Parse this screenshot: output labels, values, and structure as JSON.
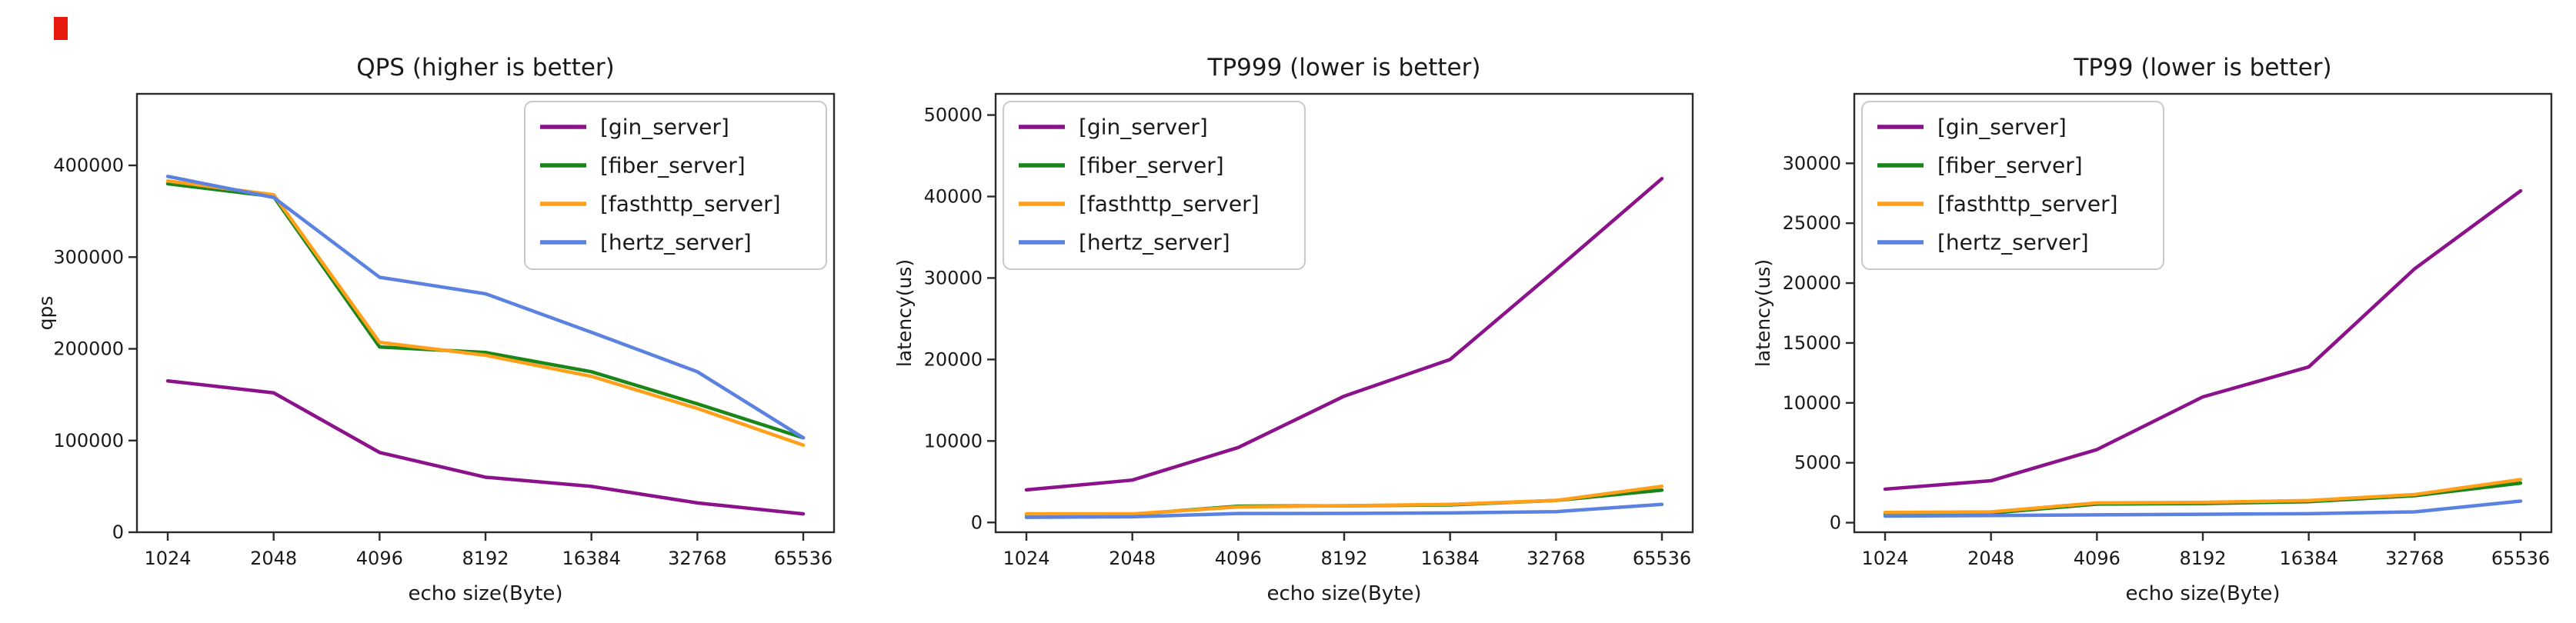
{
  "red_marker": {
    "color": "#e8190f"
  },
  "x_axis": {
    "label": "echo size(Byte)",
    "categories": [
      "1024",
      "2048",
      "4096",
      "8192",
      "16384",
      "32768",
      "65536"
    ]
  },
  "chart_data": [
    {
      "type": "line",
      "title": "QPS (higher is better)",
      "xlabel": "echo size(Byte)",
      "ylabel": "qps",
      "categories": [
        "1024",
        "2048",
        "4096",
        "8192",
        "16384",
        "32768",
        "65536"
      ],
      "x_scale": "log2-evenly-spaced",
      "ylim": [
        0,
        478000
      ],
      "yticks": [
        0,
        100000,
        200000,
        300000,
        400000
      ],
      "grid": false,
      "legend_position": "upper right",
      "series": [
        {
          "label": "[gin_server]",
          "color": "#8b128b",
          "values": [
            165000,
            152000,
            87000,
            60000,
            50000,
            32000,
            20000
          ]
        },
        {
          "label": "[fiber_server]",
          "color": "#1a861a",
          "values": [
            380000,
            366000,
            202000,
            196000,
            175000,
            140000,
            103000
          ]
        },
        {
          "label": "[fasthttp_server]",
          "color": "#ff9f1a",
          "values": [
            383000,
            368000,
            207000,
            193000,
            170000,
            135000,
            95000
          ]
        },
        {
          "label": "[hertz_server]",
          "color": "#5b82e0",
          "values": [
            388000,
            365000,
            278000,
            260000,
            218000,
            175000,
            103000
          ]
        }
      ]
    },
    {
      "type": "line",
      "title": "TP999 (lower is better)",
      "xlabel": "echo size(Byte)",
      "ylabel": "latency(us)",
      "categories": [
        "1024",
        "2048",
        "4096",
        "8192",
        "16384",
        "32768",
        "65536"
      ],
      "x_scale": "log2-evenly-spaced",
      "ylim": [
        -1200,
        52600
      ],
      "yticks": [
        0,
        10000,
        20000,
        30000,
        40000,
        50000
      ],
      "grid": false,
      "legend_position": "upper left",
      "series": [
        {
          "label": "[gin_server]",
          "color": "#8b128b",
          "values": [
            4000,
            5200,
            9200,
            15500,
            20000,
            31000,
            42200
          ]
        },
        {
          "label": "[fiber_server]",
          "color": "#1a861a",
          "values": [
            950,
            1000,
            2000,
            2050,
            2150,
            2700,
            3970
          ]
        },
        {
          "label": "[fasthttp_server]",
          "color": "#ff9f1a",
          "values": [
            1050,
            1050,
            1900,
            2060,
            2220,
            2700,
            4440
          ]
        },
        {
          "label": "[hertz_server]",
          "color": "#5b82e0",
          "values": [
            630,
            700,
            1100,
            1110,
            1175,
            1330,
            2220
          ]
        }
      ]
    },
    {
      "type": "line",
      "title": "TP99 (lower is better)",
      "xlabel": "echo size(Byte)",
      "ylabel": "latency(us)",
      "categories": [
        "1024",
        "2048",
        "4096",
        "8192",
        "16384",
        "32768",
        "65536"
      ],
      "x_scale": "log2-evenly-spaced",
      "ylim": [
        -800,
        35800
      ],
      "yticks": [
        0,
        5000,
        10000,
        15000,
        20000,
        25000,
        30000
      ],
      "grid": false,
      "legend_position": "upper left",
      "series": [
        {
          "label": "[gin_server]",
          "color": "#8b128b",
          "values": [
            2800,
            3500,
            6100,
            10500,
            13000,
            21200,
            27700
          ]
        },
        {
          "label": "[fiber_server]",
          "color": "#1a861a",
          "values": [
            750,
            800,
            1550,
            1600,
            1750,
            2250,
            3300
          ]
        },
        {
          "label": "[fasthttp_server]",
          "color": "#ff9f1a",
          "values": [
            850,
            900,
            1650,
            1700,
            1850,
            2350,
            3600
          ]
        },
        {
          "label": "[hertz_server]",
          "color": "#5b82e0",
          "values": [
            550,
            600,
            650,
            700,
            750,
            900,
            1800
          ]
        }
      ]
    }
  ]
}
